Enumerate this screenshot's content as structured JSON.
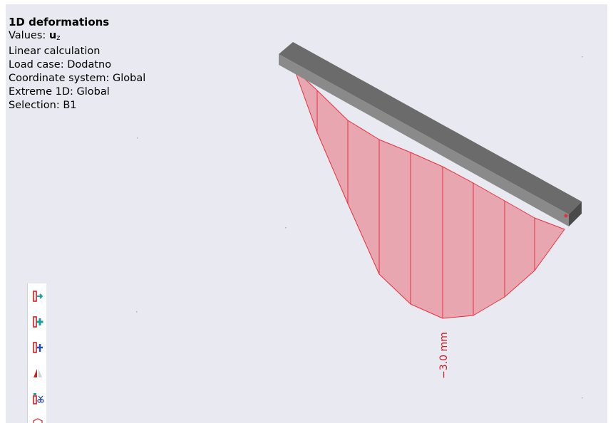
{
  "info": {
    "title": "1D deformations",
    "values_label": "Values: ",
    "values_symbol": "u",
    "values_sub": "z",
    "calc": "Linear calculation",
    "load_case": "Load case: Dodatno",
    "coord_system": "Coordinate system: Global",
    "extreme": "Extreme 1D: Global",
    "selection": "Selection: B1"
  },
  "diagram": {
    "max_label": "−3.0 mm",
    "fill_color": "#e8a7b0",
    "line_color": "#e8303a",
    "beam_color": "#6f6f6f"
  },
  "toolbar": {
    "icons": [
      "member-arrow-icon",
      "member-add-icon",
      "member-insert-icon",
      "mirror-icon",
      "member-cut-icon",
      "hexagon-icon"
    ]
  }
}
